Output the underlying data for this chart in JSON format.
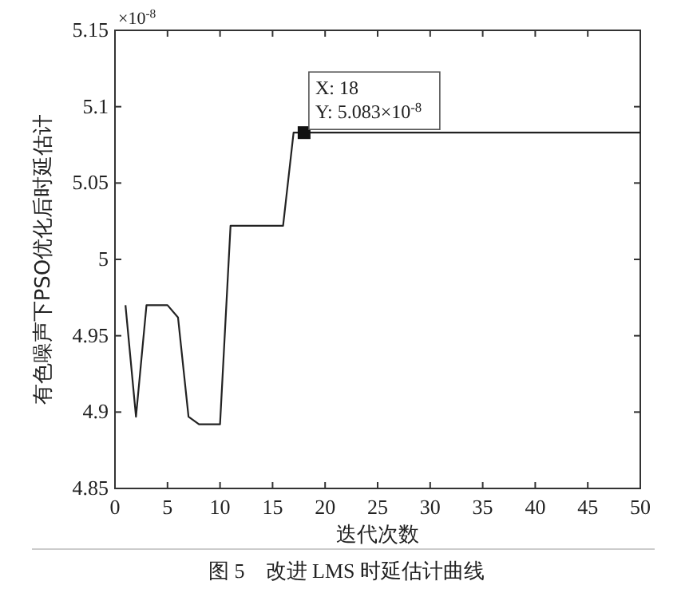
{
  "chart_data": {
    "type": "line",
    "xlabel": "迭代次数",
    "ylabel": "有色噪声下PSO优化后时延估计",
    "x": [
      1,
      2,
      3,
      5,
      6,
      7,
      8,
      10,
      11,
      16,
      17,
      18,
      50
    ],
    "values": [
      4.97,
      4.897,
      4.97,
      4.97,
      4.962,
      4.897,
      4.892,
      4.892,
      5.022,
      5.022,
      5.083,
      5.083,
      5.083
    ],
    "color": "#222222",
    "line_style": "solid",
    "xlim": [
      0,
      50
    ],
    "ylim": [
      4.85,
      5.15
    ],
    "xticks": [
      0,
      5,
      10,
      15,
      20,
      25,
      30,
      35,
      40,
      45,
      50
    ],
    "yticks": [
      4.85,
      4.9,
      4.95,
      5,
      5.05,
      5.1,
      5.15
    ],
    "annotations": [
      "×10$^{-8}$",
      {
        "text": "X: 18\nY: 5.083×10$^{-8}$",
        "x": 18,
        "y": 5.083
      },
      "图 5　改进 LMS 时延估计曲线"
    ]
  }
}
